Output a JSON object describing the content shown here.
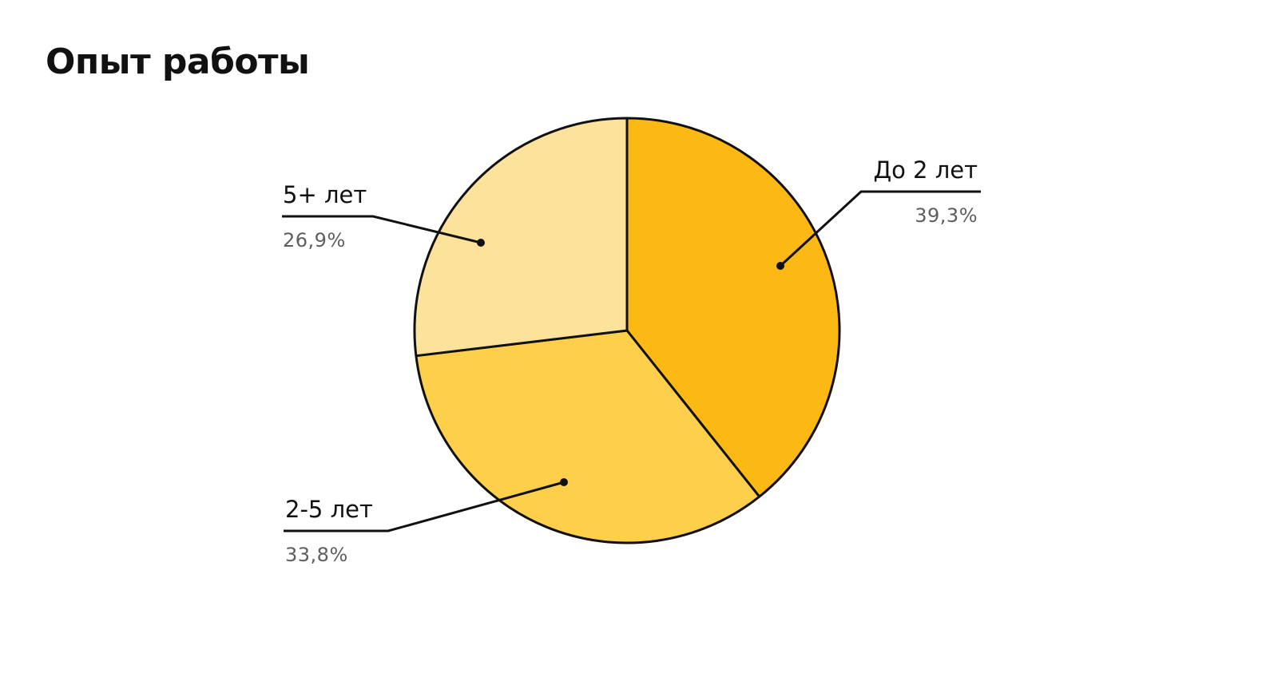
{
  "title": "Опыт работы",
  "colors": {
    "outline": "#111111",
    "value_text": "#5e5e5e"
  },
  "chart_data": {
    "type": "pie",
    "title": "Опыт работы",
    "start": "12 o'clock",
    "direction": "clockwise",
    "slices": [
      {
        "label": "До 2 лет",
        "value": 39.3,
        "display": "39,3%",
        "color": "#fdb913"
      },
      {
        "label": "2-5 лет",
        "value": 33.8,
        "display": "33,8%",
        "color": "#fecf4a"
      },
      {
        "label": "5+ лет",
        "value": 26.9,
        "display": "26,9%",
        "color": "#fde29c"
      }
    ]
  }
}
